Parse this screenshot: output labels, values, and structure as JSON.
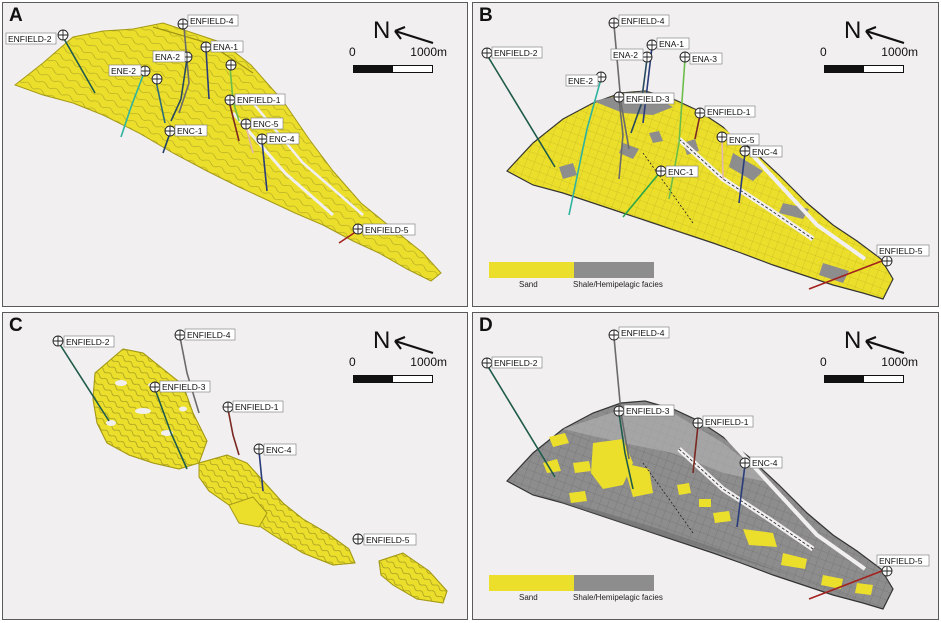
{
  "north_label": "N",
  "scale": {
    "start": "0",
    "end": "1000m"
  },
  "legend": {
    "sand": "Sand",
    "shale": "Shale/Hemipelagic facies"
  },
  "colors": {
    "sand": "#ecdf2c",
    "shale": "#8d8d8d",
    "background": "#f1efef"
  },
  "panels": [
    {
      "id": "A",
      "letter": "A",
      "wells": [
        {
          "label": "ENFIELD-2"
        },
        {
          "label": "ENFIELD-4"
        },
        {
          "label": "ENA-1"
        },
        {
          "label": "ENA-2"
        },
        {
          "label": "ENE-2"
        },
        {
          "label": "ENFIELD-1"
        },
        {
          "label": "ENC-5"
        },
        {
          "label": "ENC-1"
        },
        {
          "label": "ENC-4"
        },
        {
          "label": "ENFIELD-5"
        }
      ]
    },
    {
      "id": "B",
      "letter": "B",
      "wells": [
        {
          "label": "ENFIELD-2"
        },
        {
          "label": "ENFIELD-4"
        },
        {
          "label": "ENA-1"
        },
        {
          "label": "ENA-2"
        },
        {
          "label": "ENA-3"
        },
        {
          "label": "ENE-2"
        },
        {
          "label": "ENFIELD-3"
        },
        {
          "label": "ENFIELD-1"
        },
        {
          "label": "ENC-5"
        },
        {
          "label": "ENC-4"
        },
        {
          "label": "ENC-1"
        },
        {
          "label": "ENFIELD-5"
        }
      ]
    },
    {
      "id": "C",
      "letter": "C",
      "wells": [
        {
          "label": "ENFIELD-2"
        },
        {
          "label": "ENFIELD-4"
        },
        {
          "label": "ENFIELD-3"
        },
        {
          "label": "ENFIELD-1"
        },
        {
          "label": "ENC-4"
        },
        {
          "label": "ENFIELD-5"
        }
      ]
    },
    {
      "id": "D",
      "letter": "D",
      "wells": [
        {
          "label": "ENFIELD-2"
        },
        {
          "label": "ENFIELD-4"
        },
        {
          "label": "ENFIELD-3"
        },
        {
          "label": "ENFIELD-1"
        },
        {
          "label": "ENC-4"
        },
        {
          "label": "ENFIELD-5"
        }
      ]
    }
  ]
}
